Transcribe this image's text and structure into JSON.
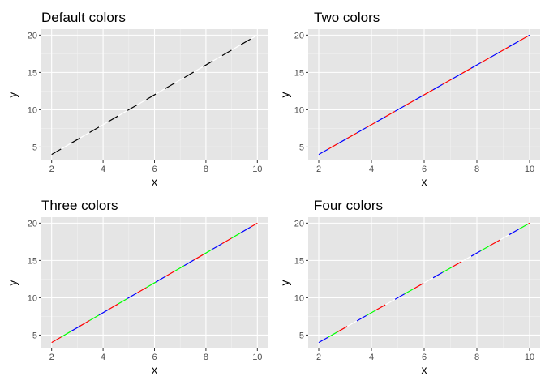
{
  "chart_data": [
    {
      "type": "line",
      "title": "Default colors",
      "xlabel": "x",
      "ylabel": "y",
      "x": [
        2,
        10
      ],
      "y": [
        4,
        20
      ],
      "xlim": [
        1.6,
        10.4
      ],
      "ylim": [
        3.2,
        20.8
      ],
      "xticks": [
        "2",
        "4",
        "6",
        "8",
        "10"
      ],
      "yticks": [
        "5",
        "10",
        "15",
        "20"
      ],
      "grid": true,
      "line_style": "dashed",
      "dash_colors": [
        "#000000",
        "#ffffff"
      ]
    },
    {
      "type": "line",
      "title": "Two colors",
      "xlabel": "x",
      "ylabel": "y",
      "x": [
        2,
        10
      ],
      "y": [
        4,
        20
      ],
      "xlim": [
        1.6,
        10.4
      ],
      "ylim": [
        3.2,
        20.8
      ],
      "xticks": [
        "2",
        "4",
        "6",
        "8",
        "10"
      ],
      "yticks": [
        "5",
        "10",
        "15",
        "20"
      ],
      "grid": true,
      "line_style": "dashed",
      "dash_colors": [
        "#0000ff",
        "#ff0000"
      ]
    },
    {
      "type": "line",
      "title": "Three colors",
      "xlabel": "x",
      "ylabel": "y",
      "x": [
        2,
        10
      ],
      "y": [
        4,
        20
      ],
      "xlim": [
        1.6,
        10.4
      ],
      "ylim": [
        3.2,
        20.8
      ],
      "xticks": [
        "2",
        "4",
        "6",
        "8",
        "10"
      ],
      "yticks": [
        "5",
        "10",
        "15",
        "20"
      ],
      "grid": true,
      "line_style": "dashed",
      "dash_colors": [
        "#ff0000",
        "#00ff00",
        "#0000ff"
      ]
    },
    {
      "type": "line",
      "title": "Four colors",
      "xlabel": "x",
      "ylabel": "y",
      "x": [
        2,
        10
      ],
      "y": [
        4,
        20
      ],
      "xlim": [
        1.6,
        10.4
      ],
      "ylim": [
        3.2,
        20.8
      ],
      "xticks": [
        "2",
        "4",
        "6",
        "8",
        "10"
      ],
      "yticks": [
        "5",
        "10",
        "15",
        "20"
      ],
      "grid": true,
      "line_style": "dashed",
      "dash_colors": [
        "#0000ff",
        "#00ff00",
        "#ff0000",
        "#ffffff"
      ]
    }
  ],
  "colors": {
    "panel_background": "#e5e5e5",
    "grid_major": "#ffffff",
    "grid_minor": "#f2f2f2",
    "tick_text": "#4d4d4d",
    "tick_mark": "#333333"
  }
}
